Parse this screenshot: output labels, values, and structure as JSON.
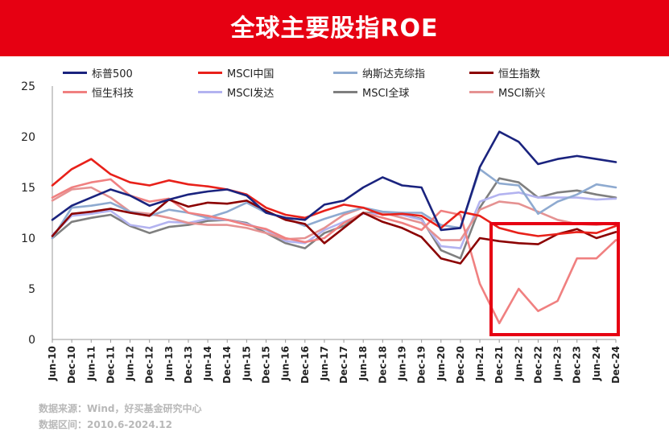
{
  "header": {
    "title": "全球主要股指ROE",
    "background": "#e60012"
  },
  "source": {
    "line1": "数据来源：Wind，好买基金研究中心",
    "line2": "数据区间：2010.6-2024.12"
  },
  "chart_data": {
    "type": "line",
    "title": "全球主要股指ROE",
    "xlabel": "",
    "ylabel": "",
    "ylim": [
      0,
      25
    ],
    "yticks": [
      0,
      5,
      10,
      15,
      20,
      25
    ],
    "grid": false,
    "legend_position": "top",
    "x": [
      "Jun-10",
      "Dec-10",
      "Jun-11",
      "Dec-11",
      "Jun-12",
      "Dec-12",
      "Jun-13",
      "Dec-13",
      "Jun-14",
      "Dec-14",
      "Jun-15",
      "Dec-15",
      "Jun-16",
      "Dec-16",
      "Jun-17",
      "Dec-17",
      "Jun-18",
      "Dec-18",
      "Jun-19",
      "Dec-19",
      "Jun-20",
      "Dec-20",
      "Jun-21",
      "Dec-21",
      "Jun-22",
      "Dec-22",
      "Jun-23",
      "Dec-23",
      "Jun-24",
      "Dec-24"
    ],
    "series": [
      {
        "name": "标普500",
        "color": "#1a237e",
        "values": [
          11.8,
          13.2,
          14.0,
          14.8,
          14.2,
          13.2,
          13.8,
          14.3,
          14.6,
          14.8,
          14.2,
          12.5,
          12.0,
          11.8,
          13.3,
          13.7,
          15.0,
          16.0,
          15.2,
          15.0,
          10.8,
          11.0,
          17.0,
          20.5,
          19.5,
          17.3,
          17.8,
          18.1,
          17.8,
          17.5
        ]
      },
      {
        "name": "MSCI中国",
        "color": "#e8211a",
        "values": [
          15.2,
          16.8,
          17.8,
          16.3,
          15.5,
          15.2,
          15.7,
          15.3,
          15.1,
          14.8,
          14.3,
          13.0,
          12.3,
          12.0,
          12.7,
          13.3,
          13.0,
          12.3,
          12.4,
          12.2,
          11.0,
          12.6,
          12.2,
          11.0,
          10.5,
          10.2,
          10.4,
          10.6,
          10.5,
          11.2
        ]
      },
      {
        "name": "纳斯达克综指",
        "color": "#8eaad0",
        "values": [
          10.0,
          13.0,
          13.2,
          13.5,
          12.6,
          12.2,
          12.8,
          12.5,
          12.0,
          12.6,
          13.5,
          12.5,
          12.0,
          11.2,
          11.9,
          12.5,
          13.0,
          12.6,
          12.5,
          12.5,
          11.3,
          11.0,
          16.8,
          15.4,
          15.2,
          12.4,
          13.6,
          14.3,
          15.3,
          15.0
        ]
      },
      {
        "name": "恒生指数",
        "color": "#8b0000",
        "values": [
          10.2,
          12.4,
          12.6,
          12.9,
          12.5,
          12.2,
          13.8,
          13.1,
          13.5,
          13.4,
          13.7,
          12.7,
          11.8,
          11.4,
          9.5,
          11.0,
          12.5,
          11.6,
          11.0,
          10.1,
          8.0,
          7.5,
          10.0,
          9.7,
          9.5,
          9.4,
          10.4,
          10.9,
          10.0,
          10.6
        ]
      },
      {
        "name": "恒生科技",
        "color": "#f08080",
        "values": [
          14.0,
          15.0,
          15.5,
          15.8,
          14.2,
          13.6,
          13.9,
          12.5,
          12.2,
          11.8,
          11.3,
          10.9,
          10.0,
          9.6,
          10.0,
          11.5,
          12.5,
          12.0,
          11.5,
          10.8,
          12.7,
          12.3,
          5.5,
          1.6,
          5.0,
          2.8,
          3.8,
          8.0,
          8.0,
          9.8
        ]
      },
      {
        "name": "MSCI发达",
        "color": "#b3b3f0",
        "values": [
          10.3,
          12.2,
          12.4,
          12.7,
          11.3,
          11.0,
          11.6,
          11.5,
          11.9,
          11.8,
          11.4,
          10.8,
          9.7,
          9.5,
          10.8,
          11.6,
          12.4,
          12.4,
          12.3,
          11.8,
          9.2,
          9.0,
          13.6,
          14.3,
          14.5,
          14.0,
          14.0,
          14.0,
          13.8,
          13.9
        ]
      },
      {
        "name": "MSCI全球",
        "color": "#7f7f7f",
        "values": [
          10.0,
          11.6,
          12.0,
          12.3,
          11.2,
          10.5,
          11.1,
          11.3,
          11.7,
          11.8,
          11.5,
          10.5,
          9.5,
          9.0,
          10.5,
          11.2,
          12.5,
          12.5,
          12.3,
          11.9,
          8.8,
          8.0,
          13.0,
          15.9,
          15.5,
          14.0,
          14.5,
          14.7,
          14.3,
          14.0
        ]
      },
      {
        "name": "MSCI新兴",
        "color": "#e59292",
        "values": [
          13.7,
          14.8,
          15.0,
          14.0,
          12.6,
          12.4,
          12.0,
          11.5,
          11.3,
          11.3,
          11.0,
          10.5,
          9.9,
          10.0,
          11.0,
          12.3,
          13.0,
          12.5,
          12.0,
          11.5,
          9.8,
          9.8,
          12.8,
          13.6,
          13.4,
          12.6,
          11.8,
          11.4,
          11.3,
          11.5
        ]
      }
    ]
  }
}
